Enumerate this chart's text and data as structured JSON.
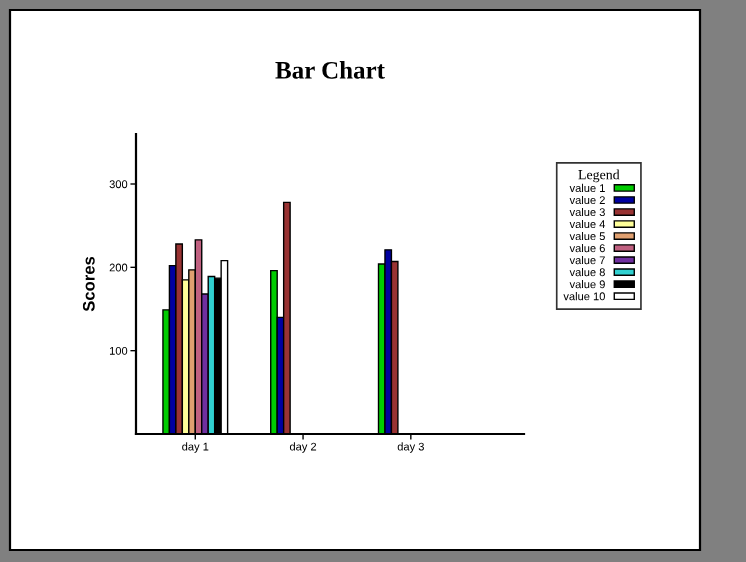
{
  "chart_data": {
    "type": "bar",
    "title": "Bar Chart",
    "ylabel": "Scores",
    "legend_title": "Legend",
    "categories": [
      "day 1",
      "day 2",
      "day 3"
    ],
    "series": [
      {
        "name": "value 1",
        "color": "#00cc00",
        "values": [
          149,
          196,
          204
        ]
      },
      {
        "name": "value 2",
        "color": "#0000a0",
        "values": [
          202,
          140,
          221
        ]
      },
      {
        "name": "value 3",
        "color": "#993333",
        "values": [
          228,
          278,
          207
        ]
      },
      {
        "name": "value 4",
        "color": "#ffff99",
        "values": [
          185,
          null,
          null
        ]
      },
      {
        "name": "value 5",
        "color": "#e0a070",
        "values": [
          197,
          null,
          null
        ]
      },
      {
        "name": "value 6",
        "color": "#c06080",
        "values": [
          233,
          null,
          null
        ]
      },
      {
        "name": "value 7",
        "color": "#7030a0",
        "values": [
          168,
          null,
          null
        ]
      },
      {
        "name": "value 8",
        "color": "#30d0d0",
        "values": [
          189,
          null,
          null
        ]
      },
      {
        "name": "value 9",
        "color": "#000000",
        "values": [
          187,
          null,
          null
        ]
      },
      {
        "name": "value 10",
        "color": "#ffffff",
        "values": [
          208,
          null,
          null
        ]
      }
    ],
    "ylim": [
      0,
      360
    ],
    "yticks": [
      100,
      200,
      300
    ],
    "grid": false,
    "legend": "right"
  }
}
